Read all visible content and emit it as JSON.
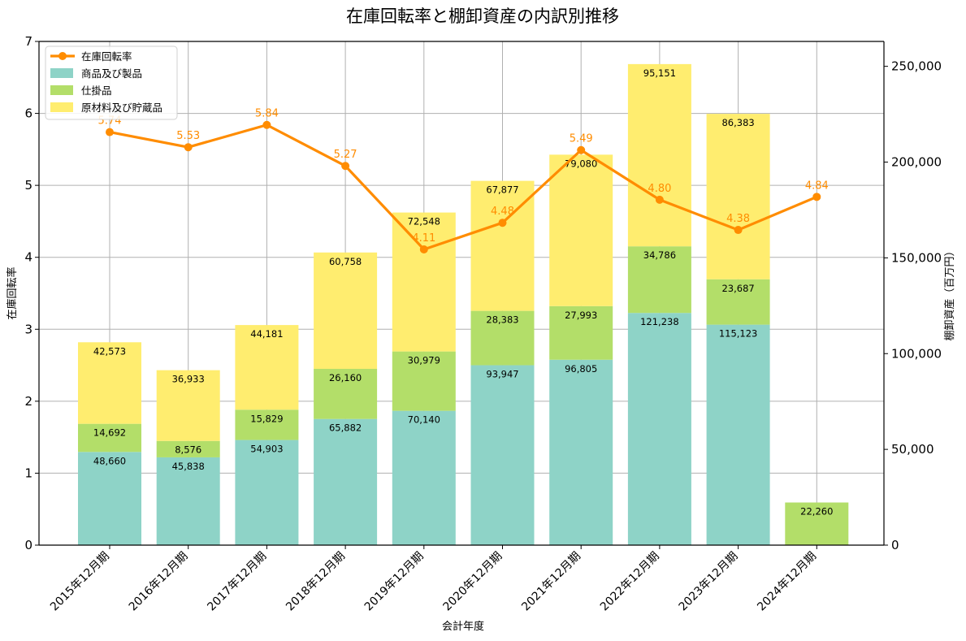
{
  "chart_data": {
    "type": "bar+line",
    "title": "在庫回転率と棚卸資産の内訳別推移",
    "xlabel": "会計年度",
    "ylabel_left": "在庫回転率",
    "ylabel_right": "棚卸資産（百万円）",
    "categories": [
      "2015年12月期",
      "2016年12月期",
      "2017年12月期",
      "2018年12月期",
      "2019年12月期",
      "2020年12月期",
      "2021年12月期",
      "2022年12月期",
      "2023年12月期",
      "2024年12月期"
    ],
    "ylim_left": [
      0,
      7
    ],
    "ylim_right": [
      0,
      263000
    ],
    "left_ticks": [
      "0",
      "1",
      "2",
      "3",
      "4",
      "5",
      "6",
      "7"
    ],
    "right_ticks": [
      {
        "value": 0,
        "label": "0"
      },
      {
        "value": 50000,
        "label": "50,000"
      },
      {
        "value": 100000,
        "label": "100,000"
      },
      {
        "value": 150000,
        "label": "150,000"
      },
      {
        "value": 200000,
        "label": "200,000"
      },
      {
        "value": 250000,
        "label": "250,000"
      }
    ],
    "grid": true,
    "legend_position": "top-left",
    "bar_series": [
      {
        "name": "商品及び製品",
        "color": "#8ed3c7",
        "values": [
          48660,
          45838,
          54903,
          65882,
          70140,
          93947,
          96805,
          121238,
          115123,
          0
        ],
        "labels": [
          "48,660",
          "45,838",
          "54,903",
          "65,882",
          "70,140",
          "93,947",
          "96,805",
          "121,238",
          "115,123",
          ""
        ]
      },
      {
        "name": "仕掛品",
        "color": "#b3de69",
        "values": [
          14692,
          8576,
          15829,
          26160,
          30979,
          28383,
          27993,
          34786,
          23687,
          22260
        ],
        "labels": [
          "14,692",
          "8,576",
          "15,829",
          "26,160",
          "30,979",
          "28,383",
          "27,993",
          "34,786",
          "23,687",
          "22,260"
        ]
      },
      {
        "name": "原材料及び貯蔵品",
        "color": "#ffed6f",
        "values": [
          42573,
          36933,
          44181,
          60758,
          72548,
          67877,
          79080,
          95151,
          86383,
          0
        ],
        "labels": [
          "42,573",
          "36,933",
          "44,181",
          "60,758",
          "72,548",
          "67,877",
          "79,080",
          "95,151",
          "86,383",
          ""
        ]
      }
    ],
    "line_series": {
      "name": "在庫回転率",
      "color": "#ff8c00",
      "values": [
        5.74,
        5.53,
        5.84,
        5.27,
        4.11,
        4.48,
        5.49,
        4.8,
        4.38,
        4.84
      ],
      "labels": [
        "5.74",
        "5.53",
        "5.84",
        "5.27",
        "4.11",
        "4.48",
        "5.49",
        "4.80",
        "4.38",
        "4.84"
      ]
    }
  }
}
